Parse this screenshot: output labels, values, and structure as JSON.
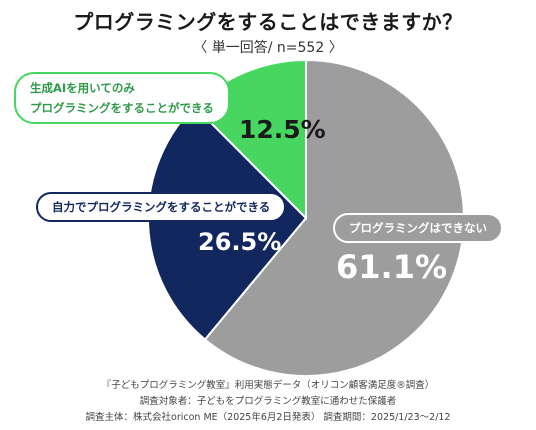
{
  "title": "プログラミングをすることはできますか？",
  "subtitle": "〈 単一回答/ n=552 〉",
  "callouts": {
    "self_only": "生成AIを用いてのみ\nプログラミングをすることができる",
    "self": "自力でプログラミングをすることができる",
    "cannot": "プログラミングはできない"
  },
  "colors": {
    "ai_only": "#47d65f",
    "self": "#12275e",
    "cannot": "#9d9d9d"
  },
  "chart_data": {
    "type": "pie",
    "title": "プログラミングをすることはできますか？",
    "categories": [
      "プログラミングはできない",
      "自力でプログラミングをすることができる",
      "生成AIを用いてのみプログラミングをすることができる"
    ],
    "values": [
      61.1,
      26.5,
      12.5
    ],
    "labels": [
      "61.1%",
      "26.5%",
      "12.5%"
    ],
    "colors": [
      "#9d9d9d",
      "#12275e",
      "#47d65f"
    ]
  },
  "footnotes": [
    "『子どもプログラミング教室』利用実態データ（オリコン顧客満足度®調査）",
    "調査対象者：子どもをプログラミング教室に通わせた保護者",
    "調査主体：株式会社oricon ME（2025年6月2日発表） 調査期間：2025/1/23〜2/12"
  ]
}
